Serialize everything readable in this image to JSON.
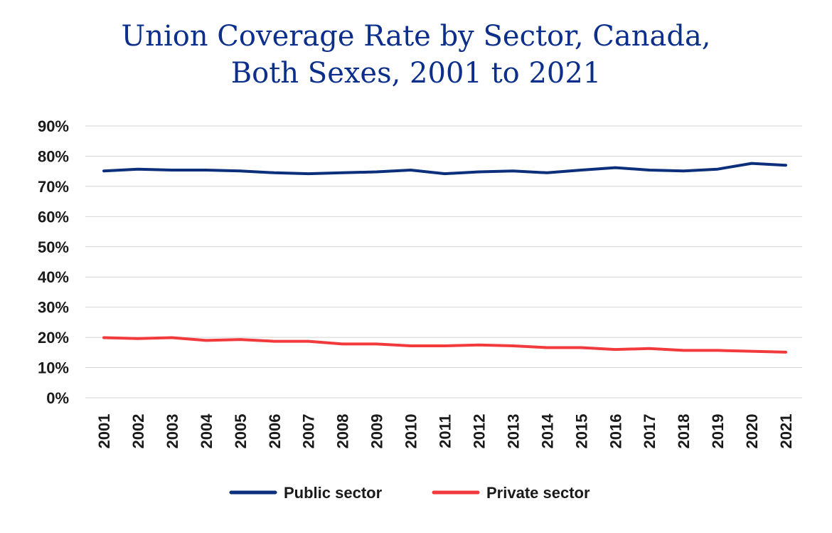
{
  "chart_data": {
    "type": "line",
    "title_line1": "Union Coverage Rate by Sector, Canada,",
    "title_line2": "Both Sexes, 2001 to 2021",
    "categories": [
      "2001",
      "2002",
      "2003",
      "2004",
      "2005",
      "2006",
      "2007",
      "2008",
      "2009",
      "2010",
      "2011",
      "2012",
      "2013",
      "2014",
      "2015",
      "2016",
      "2017",
      "2018",
      "2019",
      "2020",
      "2021"
    ],
    "y_ticks": [
      "0%",
      "10%",
      "20%",
      "30%",
      "40%",
      "50%",
      "60%",
      "70%",
      "80%",
      "90%"
    ],
    "ylim": [
      0,
      90
    ],
    "grid": true,
    "legend_position": "bottom",
    "series": [
      {
        "name": "Public sector",
        "color": "#0b2f7a",
        "values": [
          75.1,
          75.7,
          75.4,
          75.4,
          75.1,
          74.5,
          74.2,
          74.5,
          74.8,
          75.4,
          74.2,
          74.8,
          75.1,
          74.5,
          75.4,
          76.2,
          75.4,
          75.1,
          75.7,
          77.6,
          77.0
        ]
      },
      {
        "name": "Private sector",
        "color": "#f23a3c",
        "values": [
          19.9,
          19.6,
          19.9,
          19.0,
          19.3,
          18.7,
          18.7,
          17.8,
          17.8,
          17.2,
          17.2,
          17.5,
          17.2,
          16.6,
          16.6,
          16.0,
          16.3,
          15.7,
          15.7,
          15.4,
          15.1
        ]
      }
    ]
  }
}
